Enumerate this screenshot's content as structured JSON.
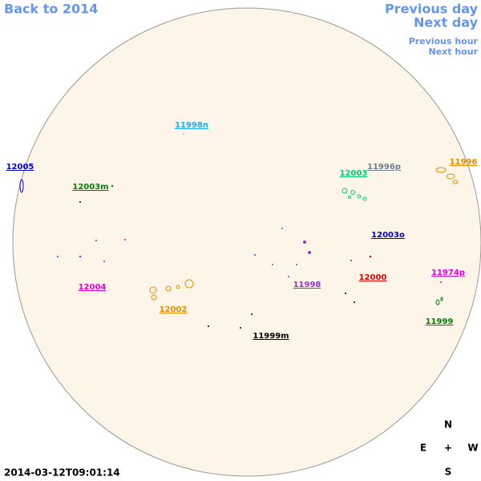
{
  "nav": {
    "back": "Back to 2014",
    "previous_day": "Previous day",
    "next_day": "Next day",
    "previous_hour": "Previous hour",
    "next_hour": "Next hour"
  },
  "regions": [
    {
      "label": "12005",
      "color": "#0000cc"
    },
    {
      "label": "12003m",
      "color": "#008000"
    },
    {
      "label": "11998n",
      "color": "#1ab0e8"
    },
    {
      "label": "12003",
      "color": "#00cc77"
    },
    {
      "label": "11996p",
      "color": "#708090"
    },
    {
      "label": "11996",
      "color": "#e88a00"
    },
    {
      "label": "12003o",
      "color": "#0000cc"
    },
    {
      "label": "12004",
      "color": "#e000e0"
    },
    {
      "label": "12002",
      "color": "#e88a00"
    },
    {
      "label": "11998",
      "color": "#9932cc"
    },
    {
      "label": "12000",
      "color": "#e00000"
    },
    {
      "label": "11974p",
      "color": "#e000e0"
    },
    {
      "label": "11999",
      "color": "#008000"
    },
    {
      "label": "11999m",
      "color": "#000000"
    }
  ],
  "timestamp": "2014-03-12T09:01:14",
  "compass": {
    "n": "N",
    "e": "E",
    "center": "+",
    "w": "W",
    "s": "S"
  }
}
